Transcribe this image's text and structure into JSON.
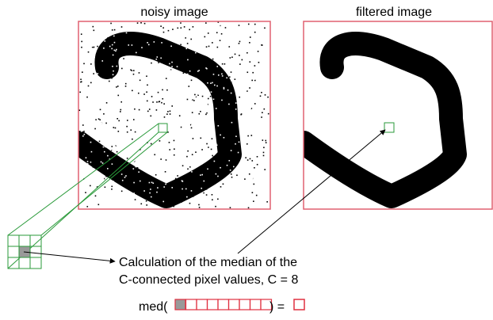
{
  "panels": {
    "noisy": {
      "title": "noisy image"
    },
    "filtered": {
      "title": "filtered image"
    }
  },
  "caption": {
    "line1": "Calculation of the median of the",
    "line2": "C-connected pixel values, C = 8"
  },
  "formula": {
    "prefix": "med(",
    "suffix": ") ="
  }
}
